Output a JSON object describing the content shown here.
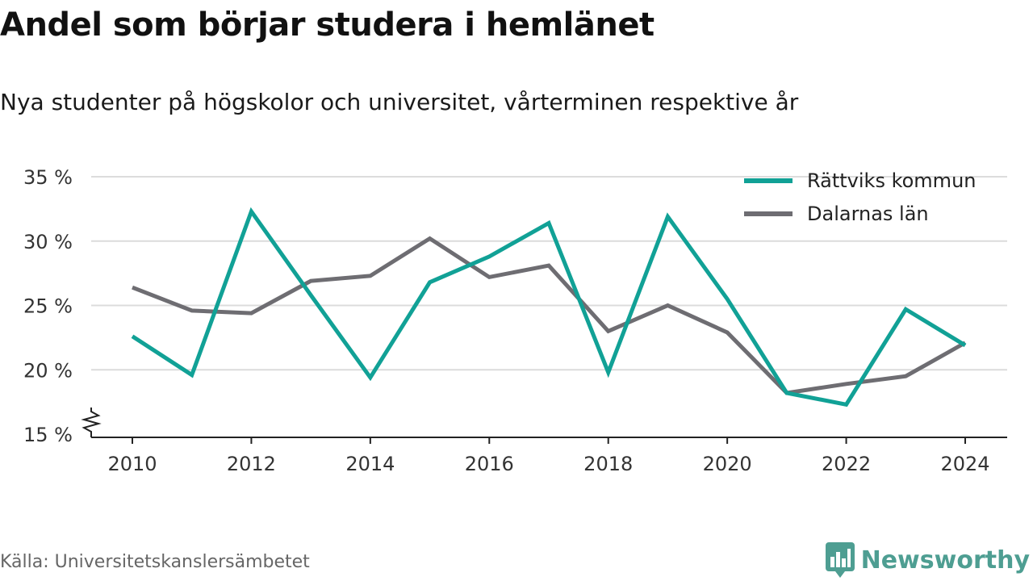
{
  "header": {
    "title": "Andel som börjar studera i hemlänet",
    "subtitle": "Nya studenter på högskolor och universitet, vårterminen respektive år"
  },
  "footer": {
    "source": "Källa: Universitetskanslersämbetet",
    "brand": "Newsworthy",
    "brand_icon": "bar-chart-bubble-icon",
    "brand_color": "#4e9e92"
  },
  "chart_data": {
    "type": "line",
    "x": [
      2010,
      2011,
      2012,
      2013,
      2014,
      2015,
      2016,
      2017,
      2018,
      2019,
      2020,
      2021,
      2022,
      2023,
      2024
    ],
    "x_ticks": [
      2010,
      2012,
      2014,
      2016,
      2018,
      2020,
      2022,
      2024
    ],
    "y_ticks": [
      15,
      20,
      25,
      30,
      35
    ],
    "y_tick_suffix": " %",
    "ylim": [
      15,
      35
    ],
    "axis_break": true,
    "grid": true,
    "legend_position": "top-right",
    "series": [
      {
        "name": "Rättviks kommun",
        "color": "#11a196",
        "values": [
          22.6,
          19.6,
          32.3,
          25.8,
          19.4,
          26.8,
          28.8,
          31.4,
          19.8,
          31.9,
          25.5,
          18.2,
          17.3,
          24.7,
          21.9
        ]
      },
      {
        "name": "Dalarnas län",
        "color": "#6e6d72",
        "values": [
          26.4,
          24.6,
          24.4,
          26.9,
          27.3,
          30.2,
          27.2,
          28.1,
          23.0,
          25.0,
          22.9,
          18.2,
          18.9,
          19.5,
          22.1
        ]
      }
    ]
  }
}
